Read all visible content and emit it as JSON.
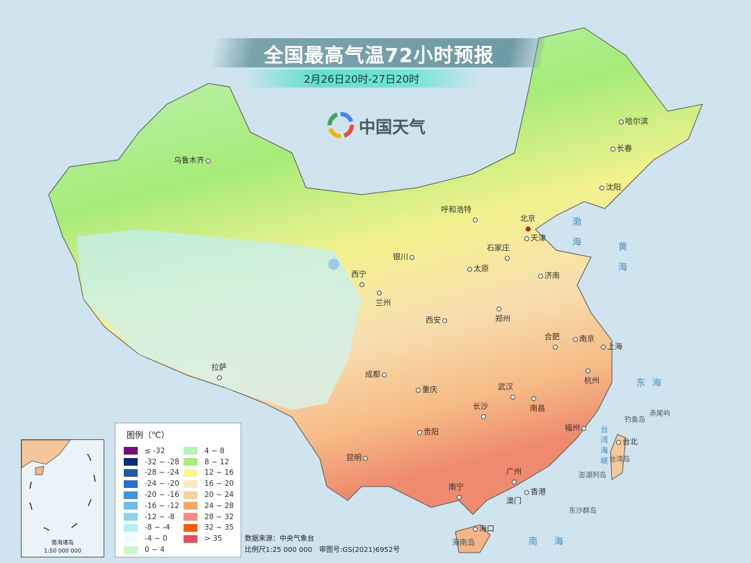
{
  "header": {
    "title": "全国最高气温72小时预报",
    "subtitle": "2月26日20时-27日20时"
  },
  "logo": {
    "text": "中国天气",
    "icon": "swirl-logo-icon"
  },
  "cities": [
    "乌鲁木齐",
    "哈尔滨",
    "长春",
    "沈阳",
    "呼和浩特",
    "北京",
    "天津",
    "石家庄",
    "银川",
    "太原",
    "济南",
    "西宁",
    "兰州",
    "郑州",
    "西安",
    "合肥",
    "南京",
    "上海",
    "拉萨",
    "成都",
    "武汉",
    "杭州",
    "重庆",
    "长沙",
    "南昌",
    "福州",
    "贵阳",
    "台北",
    "昆明",
    "广州",
    "南宁",
    "香港",
    "澳门",
    "海口"
  ],
  "seas": [
    "渤海",
    "黄海",
    "东海",
    "南海",
    "台湾海峡"
  ],
  "islands": [
    "钓鱼岛",
    "赤尾屿",
    "台湾岛",
    "澎湖列岛",
    "东沙群岛",
    "海南岛"
  ],
  "legend": {
    "title": "图例（℃）",
    "items": [
      {
        "label": "≤ -32",
        "color": "#7b0a7e"
      },
      {
        "label": "-32 ~ -28",
        "color": "#0a2a86"
      },
      {
        "label": "-28 ~ -24",
        "color": "#1f5aa6"
      },
      {
        "label": "-24 ~ -20",
        "color": "#2470cc"
      },
      {
        "label": "-20 ~ -16",
        "color": "#3c95e0"
      },
      {
        "label": "-16 ~ -12",
        "color": "#6cbcf0"
      },
      {
        "label": "-12 ~ -8",
        "color": "#8ed3ee"
      },
      {
        "label": "-8 ~ -4",
        "color": "#b4f0f8"
      },
      {
        "label": "-4 ~ 0",
        "color": "#eefcfe"
      },
      {
        "label": "0 ~ 4",
        "color": "#ccf7c8"
      },
      {
        "label": "4 ~ 8",
        "color": "#b3f5b3"
      },
      {
        "label": "8 ~ 12",
        "color": "#a8ee6a"
      },
      {
        "label": "12 ~ 16",
        "color": "#f9f98a"
      },
      {
        "label": "16 ~ 20",
        "color": "#fbe8be"
      },
      {
        "label": "20 ~ 24",
        "color": "#f9cf9c"
      },
      {
        "label": "24 ~ 28",
        "color": "#f7a468"
      },
      {
        "label": "28 ~ 32",
        "color": "#f28a80"
      },
      {
        "label": "32 ~ 35",
        "color": "#fa5a0a"
      },
      {
        "label": "> 35",
        "color": "#e4505a"
      }
    ]
  },
  "footer": {
    "source": "数据来源：中央气象台",
    "scale": "比例尺1:25 000 000　审图号:GS(2021)6952号"
  },
  "inset": {
    "title": "南海诸岛",
    "scale": "1:50 000 000"
  }
}
